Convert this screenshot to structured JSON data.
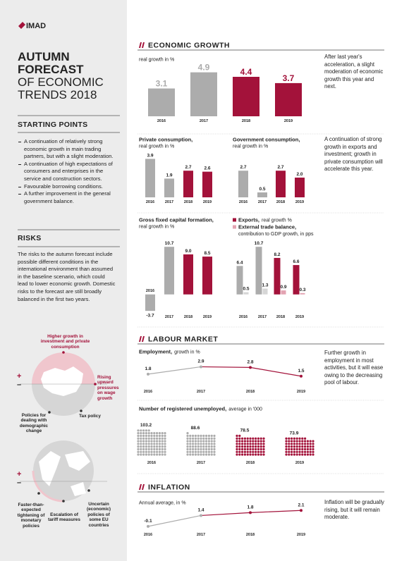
{
  "logo": "IMAD",
  "title": [
    "AUTUMN",
    "FORECAST",
    "OF ECONOMIC",
    "TRENDS 2018"
  ],
  "starting_points": {
    "heading": "STARTING POINTS",
    "items": [
      "A continuation of relatively strong economic growth in main trading partners, but with a slight moderation.",
      "A continuation of high expectations of consumers and enterprises in the service and construction sectors.",
      "Favourable borrowing conditions.",
      "A further improvement in the general government balance."
    ]
  },
  "risks": {
    "heading": "RISKS",
    "text": "The risks to the autumn forecast include possible different conditions in the international environment than assumed in the baseline scenario, which could lead to lower economic growth. Domestic risks to the forecast are still broadly balanced in the first two years.",
    "diagrams": [
      {
        "plus": "+",
        "minus": "–",
        "labels": [
          "Higher growth in investment and private consumption",
          "Rising upward pressures on wage growth",
          "Policies for dealing with demographic change",
          "Tax policy"
        ]
      },
      {
        "plus": "+",
        "minus": "–",
        "labels": [
          "Faster-than-expected tightening of monetary policies",
          "Escalation of tariff measures",
          "Uncertain (economic) policies of some EU countries"
        ]
      }
    ]
  },
  "sections": [
    {
      "heading": "ECONOMIC GROWTH",
      "notes": [
        "After last year's acceleration, a slight moderation of economic growth this year and next.",
        "A continuation of strong growth in exports and investment; growth in private consumption will accelerate this year."
      ]
    },
    {
      "heading": "LABOUR MARKET",
      "notes": [
        "Further growth in employment in most activities, but it will ease owing to the decreasing pool of labour."
      ]
    },
    {
      "heading": "INFLATION",
      "notes": [
        "Inflation will be gradually rising, but it will remain moderate."
      ]
    }
  ],
  "chart_data": [
    {
      "type": "bar",
      "subtitle": "real growth in %",
      "categories": [
        "2016",
        "2017",
        "2018",
        "2019"
      ],
      "values": [
        3.1,
        4.9,
        4.4,
        3.7
      ],
      "colors": [
        "#acacac",
        "#acacac",
        "#a3123a",
        "#a3123a"
      ],
      "ylim": [
        0,
        5.5
      ]
    },
    {
      "type": "bar",
      "title": "Private consumption,",
      "subtitle": "real growth in %",
      "categories": [
        "2016",
        "2017",
        "2018",
        "2019"
      ],
      "values": [
        3.9,
        1.9,
        2.7,
        2.6
      ],
      "colors": [
        "#acacac",
        "#acacac",
        "#a3123a",
        "#a3123a"
      ],
      "ylim": [
        0,
        4.5
      ]
    },
    {
      "type": "bar",
      "title": "Government consumption,",
      "subtitle": "real growth in %",
      "categories": [
        "2016",
        "2017",
        "2018",
        "2019"
      ],
      "values": [
        2.7,
        0.5,
        2.7,
        2.0
      ],
      "value_labels": [
        "2.7",
        "0.5",
        "2.7",
        "2.0"
      ],
      "colors": [
        "#acacac",
        "#acacac",
        "#a3123a",
        "#a3123a"
      ],
      "ylim": [
        0,
        4.5
      ]
    },
    {
      "type": "bar",
      "title": "Gross fixed capital formation,",
      "subtitle": "real growth in %",
      "categories": [
        "2016",
        "2017",
        "2018",
        "2019"
      ],
      "values": [
        -3.7,
        10.7,
        9.0,
        8.5
      ],
      "value_labels": [
        "-3.7",
        "10.7",
        "9.0",
        "8.5"
      ],
      "colors": [
        "#acacac",
        "#acacac",
        "#a3123a",
        "#a3123a"
      ],
      "ylim": [
        -4,
        12
      ]
    },
    {
      "type": "bar",
      "categories": [
        "2016",
        "2017",
        "2018",
        "2019"
      ],
      "ylim": [
        -4,
        12
      ],
      "series": [
        {
          "name": "Exports,",
          "unit": "real growth %",
          "color": "#a3123a",
          "values": [
            6.4,
            10.7,
            8.2,
            6.6
          ],
          "colors": [
            "#acacac",
            "#acacac",
            "#a3123a",
            "#a3123a"
          ]
        },
        {
          "name": "External trade balance,",
          "unit": "contribution to GDP growth, in pps",
          "color": "#e3a3b2",
          "values": [
            0.5,
            1.3,
            0.9,
            0.3
          ],
          "colors": [
            "#d6d6d6",
            "#d6d6d6",
            "#e3a3b2",
            "#e3a3b2"
          ]
        }
      ]
    },
    {
      "type": "line",
      "title": "Employment,",
      "subtitle": "growth in %",
      "categories": [
        "2016",
        "2017",
        "2018",
        "2019"
      ],
      "values": [
        1.8,
        2.9,
        2.8,
        1.5
      ],
      "colors": [
        "#acacac",
        "#acacac",
        "#a3123a",
        "#a3123a"
      ],
      "ylim": [
        0,
        4
      ]
    },
    {
      "type": "dots",
      "title": "Number of registered unemployed,",
      "subtitle": "average in '000",
      "categories": [
        "2016",
        "2017",
        "2018",
        "2019"
      ],
      "values": [
        103.2,
        88.6,
        78.5,
        73.9
      ],
      "colors": [
        "#acacac",
        "#acacac",
        "#a3123a",
        "#a3123a"
      ]
    },
    {
      "type": "line",
      "subtitle": "Annual average, in %",
      "categories": [
        "2016",
        "2017",
        "2018",
        "2019"
      ],
      "values": [
        -0.1,
        1.4,
        1.8,
        2.1
      ],
      "colors": [
        "#acacac",
        "#acacac",
        "#a3123a",
        "#a3123a"
      ],
      "ylim": [
        -0.5,
        3
      ]
    }
  ]
}
